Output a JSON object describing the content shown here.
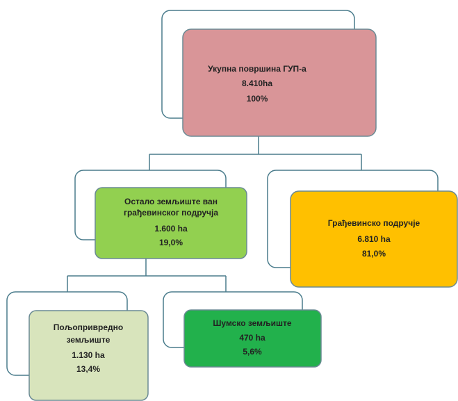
{
  "nodes": [
    {
      "lines": [
        "Укупна површина ГУП-а",
        "8.410ha",
        "100%"
      ]
    },
    {
      "lines": [
        "Остало земљиште ван",
        "грађевинског подручја",
        "1.600 ha",
        "19,0%"
      ]
    },
    {
      "lines": [
        "Грађевинско подручје",
        "6.810 ha",
        "81,0%"
      ]
    },
    {
      "lines": [
        "Пољопривредно",
        "земљиште",
        "1.130 ha",
        "13,4%"
      ]
    },
    {
      "lines": [
        "Шумско земљиште",
        "470 ha",
        "5,6%"
      ]
    }
  ]
}
